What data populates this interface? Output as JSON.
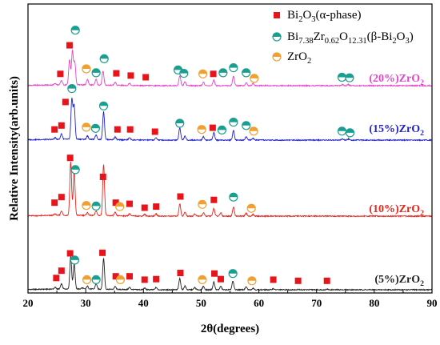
{
  "chart_data": {
    "type": "line",
    "xlabel": "2θ(degrees)",
    "ylabel": "Relative Intensity(arb.units)",
    "xlim": [
      20,
      90
    ],
    "x_ticks": [
      20,
      30,
      40,
      50,
      60,
      70,
      80,
      90
    ],
    "grid": false,
    "legend_position": "top-right",
    "legend": [
      {
        "marker": "square",
        "color": "#e8141c",
        "parts": [
          [
            "Bi",
            ""
          ],
          [
            "2",
            "sub"
          ],
          [
            "O",
            ""
          ],
          [
            "3",
            "sub"
          ],
          [
            "(α-phase)",
            ""
          ]
        ]
      },
      {
        "marker": "half-circle",
        "color": "#1a9e8f",
        "parts": [
          [
            "Bi",
            ""
          ],
          [
            "7.38",
            "sub"
          ],
          [
            "Zr",
            ""
          ],
          [
            "0.62",
            "sub"
          ],
          [
            "O",
            ""
          ],
          [
            "12.31",
            "sub"
          ],
          [
            "(β-Bi",
            ""
          ],
          [
            "2",
            "sub"
          ],
          [
            "O",
            ""
          ],
          [
            "3",
            "sub"
          ],
          [
            ")",
            ""
          ]
        ]
      },
      {
        "marker": "half-circle",
        "color": "#f0a030",
        "parts": [
          [
            "ZrO",
            ""
          ],
          [
            "2",
            "sub"
          ]
        ]
      }
    ],
    "series": [
      {
        "label_parts": [
          [
            "(5%)ZrO",
            ""
          ],
          [
            "2",
            "sub"
          ]
        ],
        "color": "#222222",
        "baseline": 0.0,
        "peaks": [
          [
            24.7,
            0.03
          ],
          [
            25.8,
            0.09
          ],
          [
            27.4,
            0.58
          ],
          [
            28.0,
            0.45
          ],
          [
            29.4,
            0.02
          ],
          [
            30.3,
            0.05
          ],
          [
            31.8,
            0.1
          ],
          [
            33.1,
            0.55
          ],
          [
            35.1,
            0.05
          ],
          [
            37.6,
            0.04
          ],
          [
            40.2,
            0.03
          ],
          [
            42.2,
            0.04
          ],
          [
            46.3,
            0.2
          ],
          [
            47.2,
            0.07
          ],
          [
            48.9,
            0.04
          ],
          [
            50.4,
            0.06
          ],
          [
            52.2,
            0.14
          ],
          [
            53.4,
            0.06
          ],
          [
            55.5,
            0.15
          ],
          [
            57.8,
            0.05
          ],
          [
            59.0,
            0.03
          ],
          [
            62.5,
            0.02
          ],
          [
            66.8,
            0.01
          ],
          [
            71.8,
            0.01
          ]
        ],
        "markers": [
          {
            "type": "bi2o3",
            "x": 24.9,
            "y": 0.21
          },
          {
            "type": "bi2o3",
            "x": 25.8,
            "y": 0.34
          },
          {
            "type": "bi2o3",
            "x": 27.3,
            "y": 0.65
          },
          {
            "type": "bi7",
            "x": 28.1,
            "y": 0.53
          },
          {
            "type": "zro2",
            "x": 30.2,
            "y": 0.18
          },
          {
            "type": "bi7",
            "x": 31.8,
            "y": 0.18
          },
          {
            "type": "bi2o3",
            "x": 32.9,
            "y": 0.66
          },
          {
            "type": "bi2o3",
            "x": 35.2,
            "y": 0.24
          },
          {
            "type": "zro2",
            "x": 36.0,
            "y": 0.18
          },
          {
            "type": "bi2o3",
            "x": 37.6,
            "y": 0.24
          },
          {
            "type": "bi2o3",
            "x": 40.2,
            "y": 0.18
          },
          {
            "type": "bi2o3",
            "x": 42.2,
            "y": 0.19
          },
          {
            "type": "bi2o3",
            "x": 46.4,
            "y": 0.3
          },
          {
            "type": "zro2",
            "x": 50.2,
            "y": 0.18
          },
          {
            "type": "bi2o3",
            "x": 52.3,
            "y": 0.29
          },
          {
            "type": "bi2o3",
            "x": 53.4,
            "y": 0.19
          },
          {
            "type": "bi7",
            "x": 55.5,
            "y": 0.29
          },
          {
            "type": "zro2",
            "x": 58.8,
            "y": 0.16
          },
          {
            "type": "bi2o3",
            "x": 62.5,
            "y": 0.18
          },
          {
            "type": "bi2o3",
            "x": 66.8,
            "y": 0.16
          },
          {
            "type": "bi2o3",
            "x": 71.8,
            "y": 0.16
          }
        ]
      },
      {
        "label_parts": [
          [
            "(10%)ZrO",
            ""
          ],
          [
            "2",
            "sub"
          ]
        ],
        "color": "#e8241c",
        "baseline": 1.0,
        "peaks": [
          [
            24.7,
            0.03
          ],
          [
            25.8,
            0.08
          ],
          [
            27.4,
            0.95
          ],
          [
            28.0,
            0.8
          ],
          [
            30.3,
            0.05
          ],
          [
            31.8,
            0.08
          ],
          [
            33.1,
            0.92
          ],
          [
            35.1,
            0.06
          ],
          [
            37.6,
            0.04
          ],
          [
            40.2,
            0.03
          ],
          [
            42.2,
            0.04
          ],
          [
            46.3,
            0.22
          ],
          [
            47.2,
            0.07
          ],
          [
            48.9,
            0.04
          ],
          [
            50.4,
            0.06
          ],
          [
            52.2,
            0.14
          ],
          [
            53.4,
            0.06
          ],
          [
            55.6,
            0.16
          ],
          [
            57.8,
            0.05
          ],
          [
            59.0,
            0.03
          ]
        ],
        "markers": [
          {
            "type": "bi2o3",
            "x": 24.6,
            "y": 0.24
          },
          {
            "type": "bi2o3",
            "x": 25.8,
            "y": 0.34
          },
          {
            "type": "bi2o3",
            "x": 27.3,
            "y": 1.04
          },
          {
            "type": "bi7",
            "x": 28.2,
            "y": 0.83
          },
          {
            "type": "zro2",
            "x": 30.1,
            "y": 0.19
          },
          {
            "type": "bi7",
            "x": 31.8,
            "y": 0.18
          },
          {
            "type": "bi2o3",
            "x": 33.0,
            "y": 0.7
          },
          {
            "type": "bi2o3",
            "x": 35.2,
            "y": 0.24
          },
          {
            "type": "zro2",
            "x": 35.9,
            "y": 0.17
          },
          {
            "type": "bi2o3",
            "x": 37.6,
            "y": 0.22
          },
          {
            "type": "bi2o3",
            "x": 40.2,
            "y": 0.15
          },
          {
            "type": "bi2o3",
            "x": 42.2,
            "y": 0.17
          },
          {
            "type": "bi2o3",
            "x": 46.4,
            "y": 0.35
          },
          {
            "type": "zro2",
            "x": 50.2,
            "y": 0.21
          },
          {
            "type": "bi2o3",
            "x": 52.2,
            "y": 0.29
          },
          {
            "type": "bi7",
            "x": 55.6,
            "y": 0.34
          },
          {
            "type": "zro2",
            "x": 58.7,
            "y": 0.14
          }
        ]
      },
      {
        "label_parts": [
          [
            "(15%)ZrO",
            ""
          ],
          [
            "2",
            "sub"
          ]
        ],
        "color": "#2222cc",
        "baseline": 2.0,
        "peaks": [
          [
            24.7,
            0.03
          ],
          [
            25.8,
            0.1
          ],
          [
            27.6,
            0.72
          ],
          [
            28.0,
            0.6
          ],
          [
            30.3,
            0.06
          ],
          [
            31.8,
            0.08
          ],
          [
            33.1,
            0.5
          ],
          [
            35.1,
            0.05
          ],
          [
            37.6,
            0.04
          ],
          [
            42.2,
            0.04
          ],
          [
            46.3,
            0.22
          ],
          [
            47.2,
            0.07
          ],
          [
            50.4,
            0.06
          ],
          [
            52.2,
            0.14
          ],
          [
            55.6,
            0.17
          ],
          [
            57.8,
            0.06
          ],
          [
            59.0,
            0.03
          ],
          [
            74.5,
            0.02
          ],
          [
            75.5,
            0.02
          ]
        ],
        "markers": [
          {
            "type": "bi2o3",
            "x": 24.6,
            "y": 0.19
          },
          {
            "type": "bi2o3",
            "x": 25.8,
            "y": 0.26
          },
          {
            "type": "bi2o3",
            "x": 26.5,
            "y": 0.68
          },
          {
            "type": "bi7",
            "x": 27.6,
            "y": 0.92
          },
          {
            "type": "zro2",
            "x": 30.1,
            "y": 0.23
          },
          {
            "type": "bi7",
            "x": 31.7,
            "y": 0.21
          },
          {
            "type": "bi7",
            "x": 33.1,
            "y": 0.61
          },
          {
            "type": "bi2o3",
            "x": 35.5,
            "y": 0.19
          },
          {
            "type": "bi2o3",
            "x": 37.7,
            "y": 0.19
          },
          {
            "type": "bi2o3",
            "x": 42.0,
            "y": 0.15
          },
          {
            "type": "bi7",
            "x": 46.3,
            "y": 0.3
          },
          {
            "type": "zro2",
            "x": 50.1,
            "y": 0.19
          },
          {
            "type": "bi2o3",
            "x": 52.0,
            "y": 0.22
          },
          {
            "type": "bi7",
            "x": 53.6,
            "y": 0.18
          },
          {
            "type": "bi7",
            "x": 55.6,
            "y": 0.32
          },
          {
            "type": "bi7",
            "x": 57.8,
            "y": 0.26
          },
          {
            "type": "zro2",
            "x": 59.1,
            "y": 0.16
          },
          {
            "type": "bi7",
            "x": 74.4,
            "y": 0.16
          },
          {
            "type": "bi7",
            "x": 75.8,
            "y": 0.13
          }
        ]
      },
      {
        "label_parts": [
          [
            "(20%)ZrO",
            ""
          ],
          [
            "2",
            "sub"
          ]
        ],
        "color": "#e645c9",
        "baseline": 3.0,
        "peaks": [
          [
            24.7,
            0.03
          ],
          [
            25.8,
            0.08
          ],
          [
            27.2,
            0.45
          ],
          [
            27.7,
            0.6
          ],
          [
            28.1,
            0.4
          ],
          [
            30.3,
            0.1
          ],
          [
            31.8,
            0.1
          ],
          [
            33.0,
            0.25
          ],
          [
            35.1,
            0.05
          ],
          [
            37.6,
            0.04
          ],
          [
            46.3,
            0.18
          ],
          [
            47.2,
            0.07
          ],
          [
            50.4,
            0.06
          ],
          [
            52.2,
            0.1
          ],
          [
            55.6,
            0.17
          ],
          [
            57.8,
            0.05
          ],
          [
            59.0,
            0.04
          ],
          [
            74.5,
            0.02
          ],
          [
            75.5,
            0.02
          ]
        ],
        "markers": [
          {
            "type": "bi2o3",
            "x": 25.6,
            "y": 0.21
          },
          {
            "type": "bi2o3",
            "x": 27.2,
            "y": 0.72
          },
          {
            "type": "bi7",
            "x": 28.2,
            "y": 0.99
          },
          {
            "type": "zro2",
            "x": 30.1,
            "y": 0.3
          },
          {
            "type": "bi7",
            "x": 31.8,
            "y": 0.23
          },
          {
            "type": "bi7",
            "x": 33.2,
            "y": 0.48
          },
          {
            "type": "bi2o3",
            "x": 35.3,
            "y": 0.22
          },
          {
            "type": "bi2o3",
            "x": 37.8,
            "y": 0.18
          },
          {
            "type": "bi2o3",
            "x": 40.4,
            "y": 0.15
          },
          {
            "type": "bi7",
            "x": 46.0,
            "y": 0.28
          },
          {
            "type": "bi7",
            "x": 47.0,
            "y": 0.22
          },
          {
            "type": "zro2",
            "x": 50.3,
            "y": 0.21
          },
          {
            "type": "bi2o3",
            "x": 52.1,
            "y": 0.21
          },
          {
            "type": "bi7",
            "x": 53.8,
            "y": 0.23
          },
          {
            "type": "bi7",
            "x": 55.6,
            "y": 0.32
          },
          {
            "type": "bi7",
            "x": 57.8,
            "y": 0.23
          },
          {
            "type": "zro2",
            "x": 59.2,
            "y": 0.13
          },
          {
            "type": "bi7",
            "x": 74.4,
            "y": 0.15
          },
          {
            "type": "bi7",
            "x": 75.7,
            "y": 0.14
          }
        ]
      }
    ]
  }
}
